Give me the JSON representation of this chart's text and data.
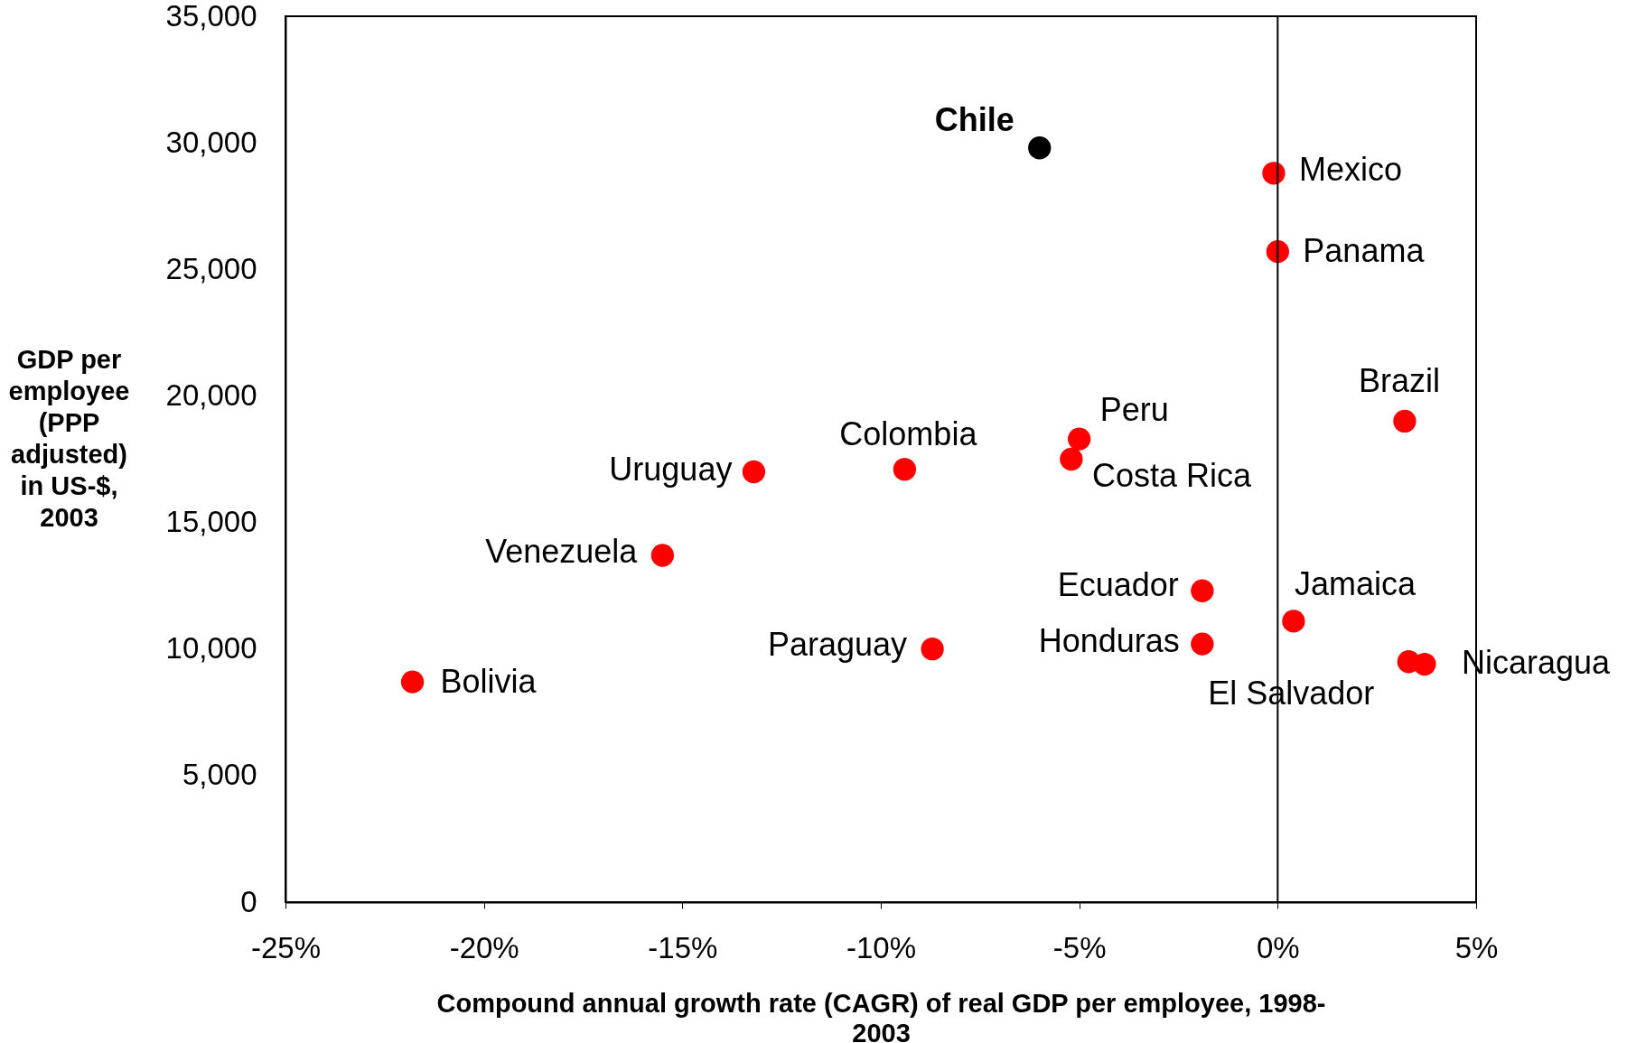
{
  "chart_data": {
    "type": "scatter",
    "xlabel": "Compound annual growth rate (CAGR) of real GDP per employee, 1998-2003",
    "ylabel": "GDP per employee (PPP adjusted) in US-$, 2003",
    "xlim": [
      -25,
      5
    ],
    "xticks": [
      {
        "value": -25,
        "label": "-25%"
      },
      {
        "value": -20,
        "label": "-20%"
      },
      {
        "value": -15,
        "label": "-15%"
      },
      {
        "value": -10,
        "label": "-10%"
      },
      {
        "value": -5,
        "label": "-5%"
      },
      {
        "value": 0,
        "label": "0%"
      },
      {
        "value": 5,
        "label": "5%"
      }
    ],
    "ylim": [
      0,
      35000
    ],
    "yticks": [
      0,
      {
        "value": 5000,
        "label": "5,000"
      },
      {
        "value": 10000,
        "label": "10,000"
      },
      {
        "value": 15000,
        "label": "15,000"
      },
      {
        "value": 20000,
        "label": "20,000"
      },
      {
        "value": 25000,
        "label": "25,000"
      },
      {
        "value": 30000,
        "label": "30,000"
      },
      {
        "value": 35000,
        "label": "35,000"
      }
    ],
    "marker": "circle",
    "ref_lines": [
      {
        "axis": "x",
        "value": 0,
        "color": "#000000"
      }
    ],
    "series": [
      {
        "name": "Chile",
        "color": "#000000",
        "x": [
          -6.0
        ],
        "values": [
          29800
        ]
      },
      {
        "name": "Mexico",
        "color": "#ff0000",
        "x": [
          -0.1
        ],
        "values": [
          28800
        ]
      },
      {
        "name": "Panama",
        "color": "#ff0000",
        "x": [
          0.0
        ],
        "values": [
          25700
        ]
      },
      {
        "name": "Brazil",
        "color": "#ff0000",
        "x": [
          3.2
        ],
        "values": [
          19000
        ]
      },
      {
        "name": "Peru",
        "color": "#ff0000",
        "x": [
          -5.0
        ],
        "values": [
          18300
        ]
      },
      {
        "name": "Costa Rica",
        "color": "#ff0000",
        "x": [
          -5.2
        ],
        "values": [
          17500
        ]
      },
      {
        "name": "Colombia",
        "color": "#ff0000",
        "x": [
          -9.4
        ],
        "values": [
          17100
        ]
      },
      {
        "name": "Uruguay",
        "color": "#ff0000",
        "x": [
          -13.2
        ],
        "values": [
          17000
        ]
      },
      {
        "name": "Venezuela",
        "color": "#ff0000",
        "x": [
          -15.5
        ],
        "values": [
          13700
        ]
      },
      {
        "name": "Ecuador",
        "color": "#ff0000",
        "x": [
          -1.9
        ],
        "values": [
          12300
        ]
      },
      {
        "name": "Jamaica",
        "color": "#ff0000",
        "x": [
          0.4
        ],
        "values": [
          11100
        ]
      },
      {
        "name": "Honduras",
        "color": "#ff0000",
        "x": [
          -1.9
        ],
        "values": [
          10200
        ]
      },
      {
        "name": "Paraguay",
        "color": "#ff0000",
        "x": [
          -8.7
        ],
        "values": [
          10000
        ]
      },
      {
        "name": "El Salvador",
        "color": "#ff0000",
        "x": [
          3.3
        ],
        "values": [
          9500
        ]
      },
      {
        "name": "Nicaragua",
        "color": "#ff0000",
        "x": [
          3.7
        ],
        "values": [
          9400
        ]
      },
      {
        "name": "Bolivia",
        "color": "#ff0000",
        "x": [
          -21.8
        ],
        "values": [
          8700
        ]
      }
    ]
  }
}
